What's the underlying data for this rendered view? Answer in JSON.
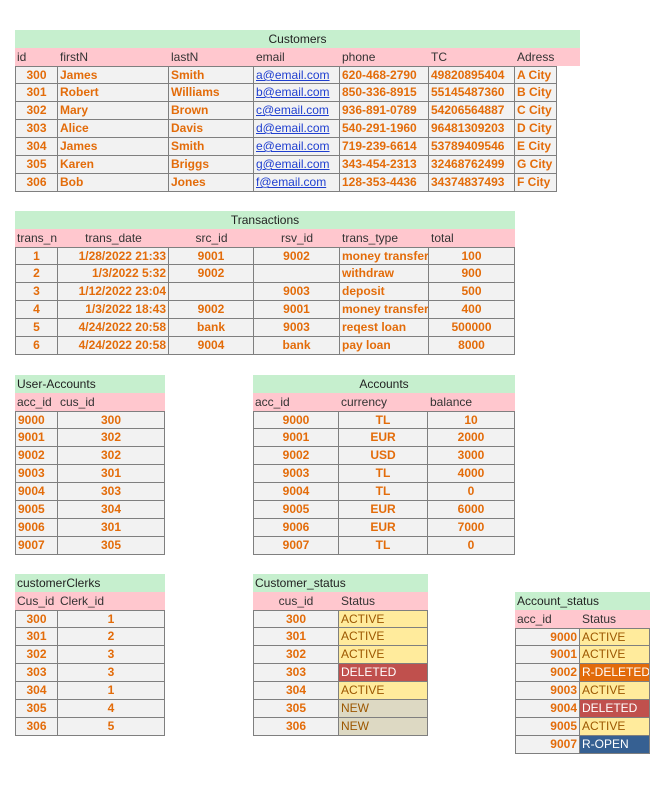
{
  "customers": {
    "title": "Customers",
    "headers": [
      "id",
      "firstN",
      "lastN",
      "email",
      "phone",
      "TC",
      "Adress"
    ],
    "rows": [
      [
        "300",
        "James",
        "Smith",
        "a@email.com",
        "620-468-2790",
        "49820895404",
        "A City"
      ],
      [
        "301",
        "Robert",
        "Williams",
        "b@email.com",
        "850-336-8915",
        "55145487360",
        "B City"
      ],
      [
        "302",
        "Mary",
        "Brown",
        "c@email.com",
        "936-891-0789",
        "54206564887",
        "C City"
      ],
      [
        "303",
        "Alice",
        "Davis",
        "d@email.com",
        "540-291-1960",
        "96481309203",
        "D City"
      ],
      [
        "304",
        "James",
        "Smith",
        "e@email.com",
        "719-239-6614",
        "53789409546",
        "E City"
      ],
      [
        "305",
        "Karen",
        "Briggs",
        "g@email.com",
        "343-454-2313",
        "32468762499",
        "G City"
      ],
      [
        "306",
        "Bob",
        "Jones",
        "f@email.com",
        "128-353-4436",
        "34374837493",
        "F City"
      ]
    ]
  },
  "transactions": {
    "title": "Transactions",
    "headers": [
      "trans_n",
      "trans_date",
      "src_id",
      "rsv_id",
      "trans_type",
      "total"
    ],
    "rows": [
      [
        "1",
        "1/28/2022 21:33",
        "9001",
        "9002",
        "money transfer",
        "100"
      ],
      [
        "2",
        "1/3/2022 5:32",
        "9002",
        "",
        "withdraw",
        "900"
      ],
      [
        "3",
        "1/12/2022 23:04",
        "",
        "9003",
        "deposit",
        "500"
      ],
      [
        "4",
        "1/3/2022 18:43",
        "9002",
        "9001",
        "money transfer",
        "400"
      ],
      [
        "5",
        "4/24/2022 20:58",
        "bank",
        "9003",
        "reqest loan",
        "500000"
      ],
      [
        "6",
        "4/24/2022 20:58",
        "9004",
        "bank",
        "pay loan",
        "8000"
      ]
    ]
  },
  "user_accounts": {
    "title": "User-Accounts",
    "headers": [
      "acc_id",
      "cus_id"
    ],
    "rows": [
      [
        "9000",
        "300"
      ],
      [
        "9001",
        "302"
      ],
      [
        "9002",
        "302"
      ],
      [
        "9003",
        "301"
      ],
      [
        "9004",
        "303"
      ],
      [
        "9005",
        "304"
      ],
      [
        "9006",
        "301"
      ],
      [
        "9007",
        "305"
      ]
    ]
  },
  "accounts": {
    "title": "Accounts",
    "headers": [
      "acc_id",
      "currency",
      "balance"
    ],
    "rows": [
      [
        "9000",
        "TL",
        "10"
      ],
      [
        "9001",
        "EUR",
        "2000"
      ],
      [
        "9002",
        "USD",
        "3000"
      ],
      [
        "9003",
        "TL",
        "4000"
      ],
      [
        "9004",
        "TL",
        "0"
      ],
      [
        "9005",
        "EUR",
        "6000"
      ],
      [
        "9006",
        "EUR",
        "7000"
      ],
      [
        "9007",
        "TL",
        "0"
      ]
    ]
  },
  "customer_clerks": {
    "title": "customerClerks",
    "headers": [
      "Cus_id",
      "Clerk_id"
    ],
    "rows": [
      [
        "300",
        "1"
      ],
      [
        "301",
        "2"
      ],
      [
        "302",
        "3"
      ],
      [
        "303",
        "3"
      ],
      [
        "304",
        "1"
      ],
      [
        "305",
        "4"
      ],
      [
        "306",
        "5"
      ]
    ]
  },
  "customer_status": {
    "title": "Customer_status",
    "headers": [
      "cus_id",
      "Status"
    ],
    "rows": [
      [
        "300",
        "ACTIVE"
      ],
      [
        "301",
        "ACTIVE"
      ],
      [
        "302",
        "ACTIVE"
      ],
      [
        "303",
        "DELETED"
      ],
      [
        "304",
        "ACTIVE"
      ],
      [
        "305",
        "NEW"
      ],
      [
        "306",
        "NEW"
      ]
    ]
  },
  "account_status": {
    "title": "Account_status",
    "headers": [
      "acc_id",
      "Status"
    ],
    "rows": [
      [
        "9000",
        "ACTIVE"
      ],
      [
        "9001",
        "ACTIVE"
      ],
      [
        "9002",
        "R-DELETED"
      ],
      [
        "9003",
        "ACTIVE"
      ],
      [
        "9004",
        "DELETED"
      ],
      [
        "9005",
        "ACTIVE"
      ],
      [
        "9007",
        "R-OPEN"
      ]
    ]
  },
  "status_colors": {
    "ACTIVE": "#ffeb9c",
    "DELETED": "#c0504d",
    "NEW": "#ddd9c3",
    "R-DELETED": "#e26b0a",
    "R-OPEN": "#366092"
  }
}
